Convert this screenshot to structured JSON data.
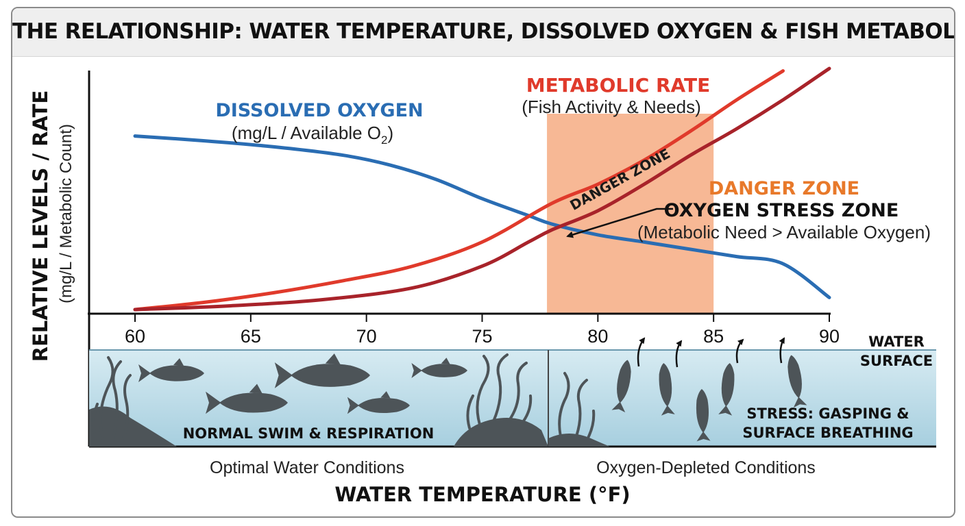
{
  "title": "THE RELATIONSHIP: WATER TEMPERATURE, DISSOLVED OXYGEN & FISH METABOLISM",
  "colors": {
    "oxygen": "#2a6db3",
    "metabolic": "#e03a2b",
    "metabolic_dark": "#a8232a",
    "danger_fill": "#f7b48f",
    "danger_text": "#e8792a",
    "water_top": "#d7ebf2",
    "water_bottom": "#a7cfdf",
    "silhouette": "#4d5458"
  },
  "labels": {
    "oxygen_title": "DISSOLVED OXYGEN",
    "oxygen_sub": "(mg/L / Available O",
    "oxygen_sub_subscript": "2",
    "oxygen_sub_close": ")",
    "metabolic_title": "METABOLIC RATE",
    "metabolic_sub": "(Fish Activity & Needs)",
    "danger_band_label": "DANGER ZONE",
    "danger_title": "DANGER ZONE",
    "stress_title": "OXYGEN STRESS ZONE",
    "stress_sub": "(Metabolic Need > Available Oxygen)",
    "water_surface_line1": "WATER",
    "water_surface_line2": "SURFACE",
    "normal_caption": "NORMAL SWIM & RESPIRATION",
    "stress_caption_line1": "STRESS: GASPING &",
    "stress_caption_line2": "SURFACE BREATHING",
    "optimal_conditions": "Optimal Water Conditions",
    "depleted_conditions": "Oxygen-Depleted Conditions"
  },
  "chart_data": {
    "type": "line",
    "title": "THE RELATIONSHIP: WATER TEMPERATURE, DISSOLVED OXYGEN & FISH METABOLISM",
    "xlabel": "WATER TEMPERATURE (°F)",
    "ylabel": "RELATIVE LEVELS / RATE",
    "ylabel_sub": "(mg/L / Metabolic Count)",
    "xlim": [
      60,
      90
    ],
    "ylim": [
      0,
      100
    ],
    "x_ticks": [
      60,
      65,
      70,
      75,
      80,
      85,
      90
    ],
    "grid": false,
    "series": [
      {
        "name": "DISSOLVED OXYGEN",
        "color": "#2a6db3",
        "x": [
          60,
          63,
          66,
          69,
          71,
          73,
          75,
          77,
          78,
          80,
          82,
          84,
          86,
          88,
          90
        ],
        "y": [
          72,
          70,
          67.5,
          64,
          60,
          54,
          46,
          39,
          35.5,
          31,
          28,
          25,
          22,
          19,
          5
        ]
      },
      {
        "name": "METABOLIC RATE",
        "color": "#e03a2b",
        "x": [
          60,
          63,
          66,
          69,
          72,
          75,
          78,
          80,
          82,
          84,
          86,
          88
        ],
        "y": [
          0,
          3,
          7,
          12,
          18,
          28,
          44,
          52,
          62,
          74,
          87,
          99
        ]
      },
      {
        "name": "METABOLIC RATE (danger boundary)",
        "color": "#a8232a",
        "x": [
          60,
          64,
          68,
          72,
          75,
          77,
          78,
          80,
          82,
          84,
          86,
          88,
          90
        ],
        "y": [
          0,
          1.5,
          4,
          9,
          18,
          28,
          33,
          41,
          52,
          64,
          75,
          87,
          100
        ]
      }
    ],
    "shaded_regions": [
      {
        "label": "DANGER ZONE",
        "x_start": 77.8,
        "x_end": 85
      }
    ]
  }
}
